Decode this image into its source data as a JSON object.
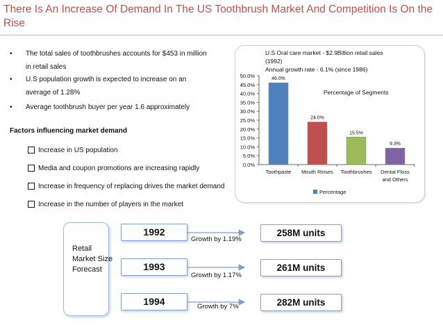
{
  "title": "There Is An Increase Of Demand In The US Toothbrush Market And Competition Is On the Rise",
  "bullets": [
    "The total sales of toothbrushes accounts for $453 in million",
    "in retail sales",
    "U.S population growth is expected to increase on an",
    "average of 1.28%",
    "Average toothbrush buyer per year 1.6 approximately"
  ],
  "factors": {
    "heading": "Factors influencing market demand",
    "items": [
      "Increase in US population",
      "Media and coupon promotions are increasing rapidly",
      "Increase in frequency of replacing drives the market demand",
      "Increase in the number of players in the market"
    ]
  },
  "chart_notes": {
    "line1": "U.S Oral care market - $2.9Billion retail sales",
    "line2": "(1992)",
    "line3": "Annual growth rate -  6.1% (since 1986)",
    "segments_label": "Percentage of Segments"
  },
  "chart_data": {
    "type": "bar",
    "categories": [
      "Toothpaste",
      "Mouth Rinses",
      "Toothbrushes",
      "Dental Floss and Others"
    ],
    "values": [
      46.0,
      24.0,
      15.5,
      9.3
    ],
    "value_labels": [
      "46.0%",
      "24.0%",
      "15.5%",
      "9.3%"
    ],
    "colors": [
      "#4f81bd",
      "#c0504d",
      "#9bbb59",
      "#8064a2"
    ],
    "y_ticks": [
      "0.0%",
      "5.0%",
      "10.0%",
      "15.0%",
      "20.0%",
      "25.0%",
      "30.0%",
      "35.0%",
      "40.0%",
      "45.0%",
      "50.0%"
    ],
    "ylim": [
      0,
      50
    ],
    "legend": "Percentage",
    "legend_position": "bottom",
    "grid": false
  },
  "forecast": {
    "label": "Retail Market Size Forecast",
    "rows": [
      {
        "year": "1992",
        "growth": "Growth by 1.19%",
        "units": "258M units"
      },
      {
        "year": "1993",
        "growth": "Growth by 1.17%",
        "units": "261M units"
      },
      {
        "year": "1994",
        "growth": "Growth by 7%",
        "units": "282M units"
      }
    ]
  }
}
